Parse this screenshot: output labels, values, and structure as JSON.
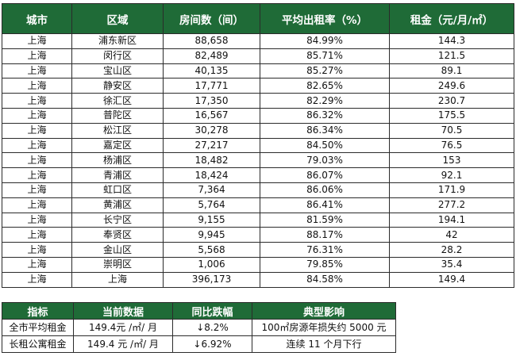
{
  "main_table": {
    "headers": [
      "城市",
      "区域",
      "房间数（间）",
      "平均出租率（%）",
      "租金（元/月/㎡）"
    ],
    "rows": [
      [
        "上海",
        "浦东新区",
        "88,658",
        "84.99%",
        "144.3"
      ],
      [
        "上海",
        "闵行区",
        "82,489",
        "85.71%",
        "121.5"
      ],
      [
        "上海",
        "宝山区",
        "40,135",
        "85.27%",
        "89.1"
      ],
      [
        "上海",
        "静安区",
        "17,771",
        "82.65%",
        "249.6"
      ],
      [
        "上海",
        "徐汇区",
        "17,350",
        "82.29%",
        "230.7"
      ],
      [
        "上海",
        "普陀区",
        "16,567",
        "86.32%",
        "175.5"
      ],
      [
        "上海",
        "松江区",
        "30,278",
        "86.34%",
        "70.5"
      ],
      [
        "上海",
        "嘉定区",
        "27,217",
        "84.50%",
        "76.5"
      ],
      [
        "上海",
        "杨浦区",
        "18,482",
        "79.03%",
        "153"
      ],
      [
        "上海",
        "青浦区",
        "18,424",
        "86.07%",
        "92.1"
      ],
      [
        "上海",
        "虹口区",
        "7,364",
        "86.06%",
        "171.9"
      ],
      [
        "上海",
        "黄浦区",
        "5,764",
        "86.41%",
        "277.2"
      ],
      [
        "上海",
        "长宁区",
        "9,155",
        "81.59%",
        "194.1"
      ],
      [
        "上海",
        "奉贤区",
        "9,945",
        "88.17%",
        "42"
      ],
      [
        "上海",
        "金山区",
        "5,568",
        "76.31%",
        "28.2"
      ],
      [
        "上海",
        "崇明区",
        "1,006",
        "79.85%",
        "35.4"
      ],
      [
        "上海",
        "上海",
        "396,173",
        "84.58%",
        "149.4"
      ]
    ]
  },
  "summary_table": {
    "headers": [
      "指标",
      "当前数据",
      "同比跌幅",
      "典型影响"
    ],
    "rows": [
      [
        "全市平均租金",
        "149.4元 /㎡/ 月",
        "↓8.2%",
        "100㎡房源年损失约 5000 元"
      ],
      [
        "长租公寓租金",
        "149.4 元 /㎡/ 月",
        "↓6.92%",
        "连续 11 个月下行"
      ]
    ]
  },
  "colors": {
    "header_bg": "#1f6b37",
    "header_text": "#ffffff",
    "border": "#2b2b2b"
  }
}
